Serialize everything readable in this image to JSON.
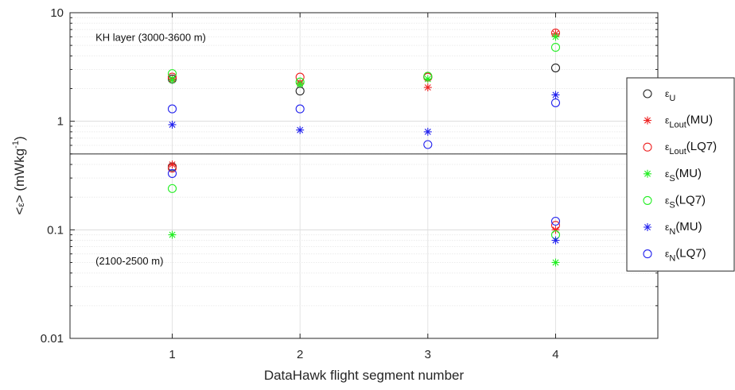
{
  "chart_data": {
    "type": "scatter",
    "title": "",
    "xlabel": "DataHawk flight segment number",
    "ylabel": "<ε> (mWkg⁻¹)",
    "ylabel_parts": {
      "lead": "<",
      "eps": "ε",
      "mid": "> (mWkg",
      "sup": "-1",
      "tail": ")"
    },
    "xlim": [
      0.2,
      4.8
    ],
    "ylim": [
      0.01,
      10
    ],
    "yscale": "log",
    "xticks": [
      1,
      2,
      3,
      4
    ],
    "xtick_labels": [
      "1",
      "2",
      "3",
      "4"
    ],
    "yticks": [
      0.01,
      0.1,
      1,
      10
    ],
    "ytick_labels": [
      "0.01",
      "0.1",
      "1",
      "10"
    ],
    "grid": true,
    "hline": 0.5,
    "legend_position": "right",
    "annotations": [
      {
        "text": "KH layer (3000-3600 m)",
        "x": 0.4,
        "y": 5.5
      },
      {
        "text": "(2100-2500 m)",
        "x": 0.4,
        "y": 0.048
      }
    ],
    "series": [
      {
        "base": "ε",
        "sub": "U",
        "suffix": "",
        "color": "#222222",
        "marker": "circle",
        "points": [
          [
            1,
            2.45
          ],
          [
            1,
            0.38
          ],
          [
            2,
            1.9
          ],
          [
            3,
            2.55
          ],
          [
            4,
            3.1
          ]
        ]
      },
      {
        "base": "ε",
        "sub": "Lout",
        "suffix": "(MU)",
        "color": "#ee2222",
        "marker": "star",
        "points": [
          [
            1,
            2.45
          ],
          [
            1,
            0.4
          ],
          [
            2,
            2.25
          ],
          [
            3,
            2.05
          ],
          [
            4,
            6.4
          ],
          [
            4,
            0.1
          ]
        ]
      },
      {
        "base": "ε",
        "sub": "Lout",
        "suffix": "(LQ7)",
        "color": "#ee2222",
        "marker": "circle",
        "points": [
          [
            1,
            2.55
          ],
          [
            1,
            0.37
          ],
          [
            2,
            2.55
          ],
          [
            3,
            2.55
          ],
          [
            4,
            6.5
          ],
          [
            4,
            0.11
          ]
        ]
      },
      {
        "base": "ε",
        "sub": "S",
        "suffix": "(MU)",
        "color": "#22ee22",
        "marker": "star",
        "points": [
          [
            1,
            2.4
          ],
          [
            1,
            0.09
          ],
          [
            2,
            2.2
          ],
          [
            3,
            2.45
          ],
          [
            4,
            6.0
          ],
          [
            4,
            0.05
          ]
        ]
      },
      {
        "base": "ε",
        "sub": "S",
        "suffix": "(LQ7)",
        "color": "#22ee22",
        "marker": "circle",
        "points": [
          [
            1,
            2.75
          ],
          [
            1,
            0.24
          ],
          [
            2,
            2.3
          ],
          [
            3,
            2.6
          ],
          [
            4,
            4.8
          ],
          [
            4,
            0.09
          ]
        ]
      },
      {
        "base": "ε",
        "sub": "N",
        "suffix": "(MU)",
        "color": "#2222ee",
        "marker": "star",
        "points": [
          [
            1,
            0.93
          ],
          [
            2,
            0.83
          ],
          [
            3,
            0.8
          ],
          [
            4,
            1.75
          ],
          [
            4,
            0.08
          ]
        ]
      },
      {
        "base": "ε",
        "sub": "N",
        "suffix": "(LQ7)",
        "color": "#2222ee",
        "marker": "circle",
        "points": [
          [
            1,
            1.3
          ],
          [
            1,
            0.33
          ],
          [
            2,
            1.3
          ],
          [
            3,
            0.61
          ],
          [
            4,
            1.48
          ],
          [
            4,
            0.12
          ]
        ]
      }
    ]
  }
}
